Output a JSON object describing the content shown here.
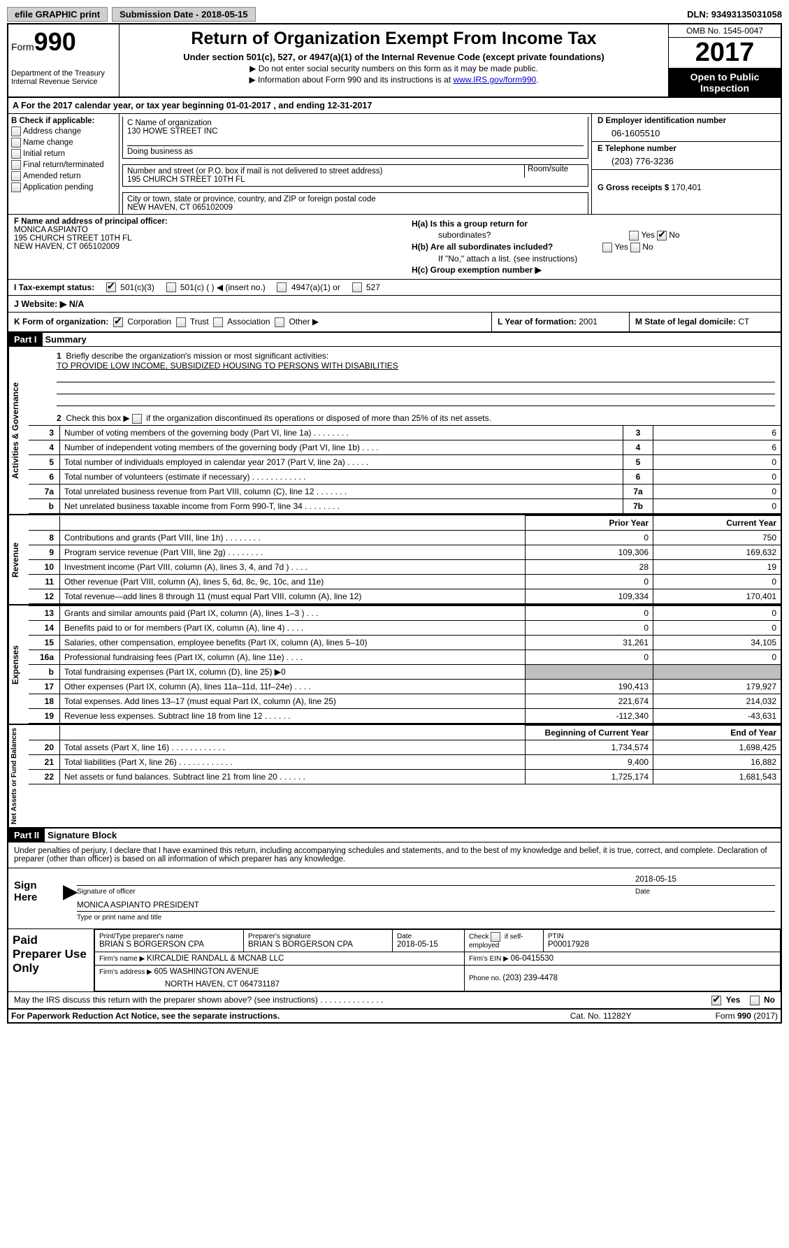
{
  "topbar": {
    "efile": "efile GRAPHIC print",
    "submission_label": "Submission Date - ",
    "submission_date": "2018-05-15",
    "dln_label": "DLN: ",
    "dln": "93493135031058"
  },
  "header": {
    "form_word": "Form",
    "form_num": "990",
    "dept1": "Department of the Treasury",
    "dept2": "Internal Revenue Service",
    "title": "Return of Organization Exempt From Income Tax",
    "subtitle": "Under section 501(c), 527, or 4947(a)(1) of the Internal Revenue Code (except private foundations)",
    "line1": "▶ Do not enter social security numbers on this form as it may be made public.",
    "line2_pre": "▶ Information about Form 990 and its instructions is at ",
    "line2_link": "www.IRS.gov/form990",
    "omb": "OMB No. 1545-0047",
    "year": "2017",
    "open": "Open to Public Inspection"
  },
  "row_a": "A  For the 2017 calendar year, or tax year beginning 01-01-2017   , and ending 12-31-2017",
  "section_b": {
    "label": "B Check if applicable:",
    "opts": [
      "Address change",
      "Name change",
      "Initial return",
      "Final return/terminated",
      "Amended return",
      "Application pending"
    ]
  },
  "section_c": {
    "name_lbl": "C Name of organization",
    "name": "130 HOWE STREET INC",
    "dba_lbl": "Doing business as",
    "dba": "",
    "street_lbl": "Number and street (or P.O. box if mail is not delivered to street address)",
    "room_lbl": "Room/suite",
    "street": "195 CHURCH STREET 10TH FL",
    "city_lbl": "City or town, state or province, country, and ZIP or foreign postal code",
    "city": "NEW HAVEN, CT  065102009"
  },
  "section_d": {
    "ein_lbl": "D Employer identification number",
    "ein": "06-1605510",
    "tel_lbl": "E Telephone number",
    "tel": "(203) 776-3236",
    "gross_lbl": "G Gross receipts $ ",
    "gross": "170,401"
  },
  "section_f": {
    "lbl": "F Name and address of principal officer:",
    "name": "MONICA ASPIANTO",
    "addr1": "195 CHURCH STREET 10TH FL",
    "addr2": "NEW HAVEN, CT  065102009"
  },
  "section_h": {
    "ha": "H(a)  Is this a group return for",
    "ha2": "subordinates?",
    "hb": "H(b)  Are all subordinates included?",
    "hb_note": "If \"No,\" attach a list. (see instructions)",
    "hc": "H(c)  Group exemption number ▶",
    "yes": "Yes",
    "no": "No"
  },
  "row_i": {
    "lbl": "I  Tax-exempt status:",
    "o1": "501(c)(3)",
    "o2": "501(c) (   ) ◀ (insert no.)",
    "o3": "4947(a)(1) or",
    "o4": "527"
  },
  "row_j": "J  Website: ▶  N/A",
  "row_k": {
    "k1_lbl": "K Form of organization:",
    "k1_opts": [
      "Corporation",
      "Trust",
      "Association",
      "Other ▶"
    ],
    "k2_lbl": "L Year of formation: ",
    "k2_val": "2001",
    "k3_lbl": "M State of legal domicile: ",
    "k3_val": "CT"
  },
  "part1": {
    "hdr": "Part I",
    "title": "Summary",
    "q1_lbl": "1",
    "q1": "Briefly describe the organization's mission or most significant activities:",
    "mission": "TO PROVIDE LOW INCOME, SUBSIDIZED HOUSING TO PERSONS WITH DISABILITIES",
    "q2_lbl": "2",
    "q2": "Check this box ▶  if the organization discontinued its operations or disposed of more than 25% of its net assets.",
    "vtab1": "Activities & Governance",
    "vtab2": "Revenue",
    "vtab3": "Expenses",
    "vtab4": "Net Assets or Fund Balances",
    "gov_lines": [
      {
        "n": "3",
        "d": "Number of voting members of the governing body (Part VI, line 1a)   .    .    .    .    .    .    .    .",
        "b": "3",
        "v": "6"
      },
      {
        "n": "4",
        "d": "Number of independent voting members of the governing body (Part VI, line 1b)    .    .    .    .",
        "b": "4",
        "v": "6"
      },
      {
        "n": "5",
        "d": "Total number of individuals employed in calendar year 2017 (Part V, line 2a)   .    .    .    .    .",
        "b": "5",
        "v": "0"
      },
      {
        "n": "6",
        "d": "Total number of volunteers (estimate if necessary)   .    .    .    .    .    .    .    .    .    .    .    .",
        "b": "6",
        "v": "0"
      },
      {
        "n": "7a",
        "d": "Total unrelated business revenue from Part VIII, column (C), line 12   .    .    .    .    .    .    .",
        "b": "7a",
        "v": "0"
      },
      {
        "n": "b",
        "d": "Net unrelated business taxable income from Form 990-T, line 34   .    .    .    .    .    .    .    .",
        "b": "7b",
        "v": "0"
      }
    ],
    "col_prior": "Prior Year",
    "col_current": "Current Year",
    "rev_lines": [
      {
        "n": "8",
        "d": "Contributions and grants (Part VIII, line 1h)    .    .    .    .    .    .    .    .",
        "p": "0",
        "c": "750"
      },
      {
        "n": "9",
        "d": "Program service revenue (Part VIII, line 2g)   .    .    .    .    .    .    .    .",
        "p": "109,306",
        "c": "169,632"
      },
      {
        "n": "10",
        "d": "Investment income (Part VIII, column (A), lines 3, 4, and 7d )   .    .    .    .",
        "p": "28",
        "c": "19"
      },
      {
        "n": "11",
        "d": "Other revenue (Part VIII, column (A), lines 5, 6d, 8c, 9c, 10c, and 11e)",
        "p": "0",
        "c": "0"
      },
      {
        "n": "12",
        "d": "Total revenue—add lines 8 through 11 (must equal Part VIII, column (A), line 12)",
        "p": "109,334",
        "c": "170,401"
      }
    ],
    "exp_lines": [
      {
        "n": "13",
        "d": "Grants and similar amounts paid (Part IX, column (A), lines 1–3 )   .    .    .",
        "p": "0",
        "c": "0"
      },
      {
        "n": "14",
        "d": "Benefits paid to or for members (Part IX, column (A), line 4)   .    .    .    .",
        "p": "0",
        "c": "0"
      },
      {
        "n": "15",
        "d": "Salaries, other compensation, employee benefits (Part IX, column (A), lines 5–10)",
        "p": "31,261",
        "c": "34,105"
      },
      {
        "n": "16a",
        "d": "Professional fundraising fees (Part IX, column (A), line 11e)   .    .    .    .",
        "p": "0",
        "c": "0"
      },
      {
        "n": "b",
        "d": "Total fundraising expenses (Part IX, column (D), line 25) ▶0",
        "p": "",
        "c": "",
        "shade": true
      },
      {
        "n": "17",
        "d": "Other expenses (Part IX, column (A), lines 11a–11d, 11f–24e)    .    .    .    .",
        "p": "190,413",
        "c": "179,927"
      },
      {
        "n": "18",
        "d": "Total expenses. Add lines 13–17 (must equal Part IX, column (A), line 25)",
        "p": "221,674",
        "c": "214,032"
      },
      {
        "n": "19",
        "d": "Revenue less expenses. Subtract line 18 from line 12   .    .    .    .    .    .",
        "p": "-112,340",
        "c": "-43,631"
      }
    ],
    "col_begin": "Beginning of Current Year",
    "col_end": "End of Year",
    "net_lines": [
      {
        "n": "20",
        "d": "Total assets (Part X, line 16)   .    .    .    .    .    .    .    .    .    .    .    .",
        "p": "1,734,574",
        "c": "1,698,425"
      },
      {
        "n": "21",
        "d": "Total liabilities (Part X, line 26)   .    .    .    .    .    .    .    .    .    .    .    .",
        "p": "9,400",
        "c": "16,882"
      },
      {
        "n": "22",
        "d": "Net assets or fund balances. Subtract line 21 from line 20 .    .    .    .    .    .",
        "p": "1,725,174",
        "c": "1,681,543"
      }
    ]
  },
  "part2": {
    "hdr": "Part II",
    "title": "Signature Block",
    "decl": "Under penalties of perjury, I declare that I have examined this return, including accompanying schedules and statements, and to the best of my knowledge and belief, it is true, correct, and complete. Declaration of preparer (other than officer) is based on all information of which preparer has any knowledge.",
    "sign_here": "Sign Here",
    "sig_date": "2018-05-15",
    "sig_lbl": "Signature of officer",
    "date_lbl": "Date",
    "name_title": "MONICA ASPIANTO PRESIDENT",
    "name_title_lbl": "Type or print name and title",
    "paid": "Paid Preparer Use Only",
    "prep_name_lbl": "Print/Type preparer's name",
    "prep_name": "BRIAN S BORGERSON CPA",
    "prep_sig_lbl": "Preparer's signature",
    "prep_sig": "BRIAN S BORGERSON CPA",
    "prep_date_lbl": "Date",
    "prep_date": "2018-05-15",
    "self_emp": "Check         if self-employed",
    "ptin_lbl": "PTIN",
    "ptin": "P00017928",
    "firm_name_lbl": "Firm's name      ▶ ",
    "firm_name": "KIRCALDIE RANDALL & MCNAB LLC",
    "firm_ein_lbl": "Firm's EIN ▶ ",
    "firm_ein": "06-0415530",
    "firm_addr_lbl": "Firm's address ▶ ",
    "firm_addr1": "605 WASHINGTON AVENUE",
    "firm_addr2": "NORTH HAVEN, CT  064731187",
    "firm_phone_lbl": "Phone no. ",
    "firm_phone": "(203) 239-4478",
    "irs_discuss": "May the IRS discuss this return with the preparer shown above? (see instructions)    .    .    .    .    .    .    .    .    .    .    .    .    .    .",
    "yes": "Yes",
    "no": "No"
  },
  "footer": {
    "left": "For Paperwork Reduction Act Notice, see the separate instructions.",
    "mid": "Cat. No. 11282Y",
    "right": "Form 990 (2017)"
  },
  "colors": {
    "black": "#000000",
    "grey_btn": "#d0d0d0",
    "shade": "#bfbfbf",
    "link": "#0000cc"
  }
}
